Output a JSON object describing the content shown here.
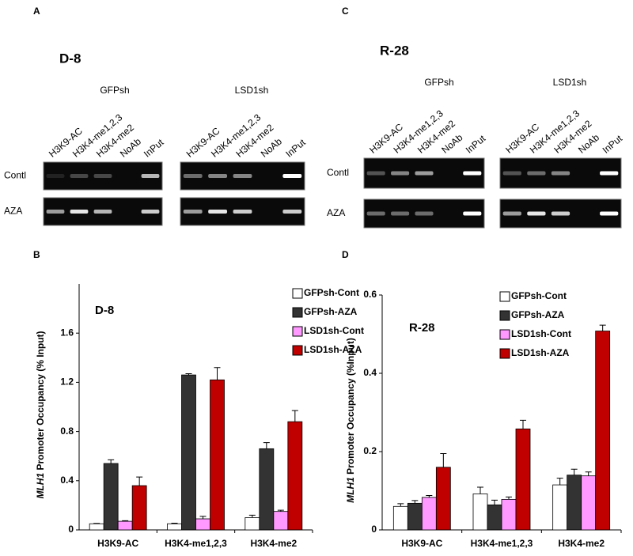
{
  "gels": [
    {
      "letter": "A",
      "title": "D-8",
      "rows": [
        "Contl",
        "AZA"
      ],
      "groups": [
        {
          "name": "GFPsh",
          "lanes": [
            "H3K9-AC",
            "H3K4-me1,2,3",
            "H3K4-me2",
            "NoAb",
            "InPut"
          ]
        },
        {
          "name": "LSD1sh",
          "lanes": [
            "H3K9-AC",
            "H3K4-me1,2,3",
            "H3K4-me2",
            "NoAb",
            "InPut"
          ]
        }
      ]
    },
    {
      "letter": "C",
      "title": "R-28",
      "rows": [
        "Contl",
        "AZA"
      ],
      "groups": [
        {
          "name": "GFPsh",
          "lanes": [
            "H3K9-AC",
            "H3K4-me1,2,3",
            "H3K4-me2",
            "NoAb",
            "InPut"
          ]
        },
        {
          "name": "LSD1sh",
          "lanes": [
            "H3K9-AC",
            "H3K4-me1,2,3",
            "H3K4-me2",
            "NoAb",
            "InPut"
          ]
        }
      ]
    }
  ],
  "chart_data": [
    {
      "type": "bar",
      "letter": "B",
      "title": "D-8",
      "ylabel": {
        "gene": "MLH1",
        "text": "Promoter Occupancy (% Input)"
      },
      "categories": [
        "H3K9-AC",
        "H3K4-me1,2,3",
        "H3K4-me2"
      ],
      "ylim": [
        0,
        2
      ],
      "yticks": [
        0,
        0.4,
        0.8,
        1.2,
        1.6
      ],
      "series": [
        {
          "name": "GFPsh-Cont",
          "color": "#ffffff",
          "values": [
            0.05,
            0.05,
            0.1
          ],
          "errors": [
            0.003,
            0.005,
            0.02
          ]
        },
        {
          "name": "GFPsh-AZA",
          "color": "#333333",
          "values": [
            0.54,
            1.26,
            0.66
          ],
          "errors": [
            0.03,
            0.01,
            0.05
          ]
        },
        {
          "name": "LSD1sh-Cont",
          "color": "#ff99ff",
          "values": [
            0.07,
            0.09,
            0.15
          ],
          "errors": [
            0.005,
            0.02,
            0.01
          ]
        },
        {
          "name": "LSD1sh-AZA",
          "color": "#c00000",
          "values": [
            0.36,
            1.22,
            0.88
          ],
          "errors": [
            0.07,
            0.1,
            0.09
          ]
        }
      ]
    },
    {
      "type": "bar",
      "letter": "D",
      "title": "R-28",
      "ylabel": {
        "gene": "MLH1",
        "text": "Promoter  Occupancy (%Input)"
      },
      "categories": [
        "H3K9-AC",
        "H3K4-me1,2,3",
        "H3K4-me2"
      ],
      "ylim": [
        0,
        0.6
      ],
      "yticks": [
        0,
        0.2,
        0.4,
        0.6
      ],
      "series": [
        {
          "name": "GFPsh-Cont",
          "color": "#ffffff",
          "values": [
            0.06,
            0.092,
            0.115
          ],
          "errors": [
            0.007,
            0.017,
            0.017
          ]
        },
        {
          "name": "GFPsh-AZA",
          "color": "#333333",
          "values": [
            0.068,
            0.064,
            0.14
          ],
          "errors": [
            0.007,
            0.012,
            0.015
          ]
        },
        {
          "name": "LSD1sh-Cont",
          "color": "#ff99ff",
          "values": [
            0.083,
            0.078,
            0.138
          ],
          "errors": [
            0.005,
            0.006,
            0.01
          ]
        },
        {
          "name": "LSD1sh-AZA",
          "color": "#c00000",
          "values": [
            0.16,
            0.258,
            0.508
          ],
          "errors": [
            0.035,
            0.022,
            0.015
          ]
        }
      ]
    }
  ]
}
